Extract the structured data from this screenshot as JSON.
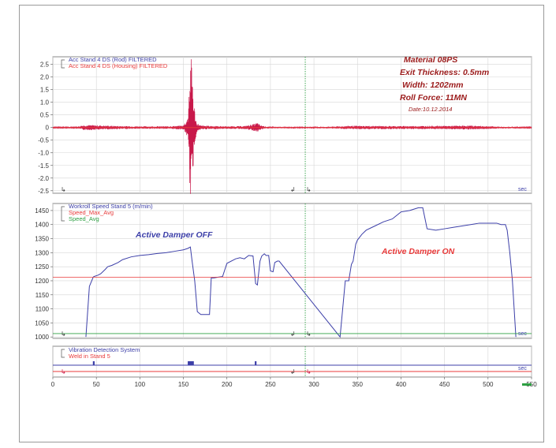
{
  "colors": {
    "blue": "#3c3fa8",
    "red": "#e83a3a",
    "green": "#2ea043",
    "grid": "#d6d6d6",
    "crimson": "#c8184a",
    "info": "#9b1b1b"
  },
  "info_box": {
    "material": "Material 08PS",
    "thickness": "Exit Thickness: 0.5mm",
    "width": "Width: 1202mm",
    "force": "Roll Force: 11MN",
    "date": "Date:10.12.2014"
  },
  "panel1": {
    "legend": [
      "Acc Stand 4 DS (Rod)  FILTERED",
      "Acc Stand 4 DS (Housing)  FILTERED"
    ],
    "sec_label": "sec"
  },
  "panel2": {
    "legend": [
      "Workroll Speed Stand 5 (m/min)",
      "Speed_Max_Avg",
      "Speed_Avg"
    ],
    "annotation_off": "Active Damper OFF",
    "annotation_on": "Active Damper ON",
    "sec_label": "sec"
  },
  "panel3": {
    "legend": [
      "Vibration Detection System",
      "Weld in Stand 5"
    ],
    "sec_label": "sec"
  },
  "chart_data": [
    {
      "type": "line",
      "series": [
        {
          "name": "Acc Stand 4 DS (Rod)  FILTERED",
          "color": "#3c3fa8"
        },
        {
          "name": "Acc Stand 4 DS (Housing)  FILTERED",
          "color": "#e83a3a"
        }
      ],
      "envelope": {
        "x": [
          0,
          28,
          30,
          35,
          45,
          60,
          80,
          100,
          130,
          150,
          155,
          158,
          160,
          162,
          165,
          170,
          200,
          220,
          232,
          235,
          238,
          245,
          260,
          290,
          300,
          310,
          330,
          340,
          400,
          450,
          480,
          520,
          540,
          550
        ],
        "y": [
          0.02,
          0.02,
          0.06,
          0.1,
          0.1,
          0.08,
          0.06,
          0.05,
          0.05,
          0.08,
          0.4,
          2.9,
          2.6,
          1.0,
          0.2,
          0.08,
          0.05,
          0.06,
          0.15,
          0.2,
          0.1,
          0.04,
          0.03,
          0.03,
          0.04,
          0.03,
          0.05,
          0.07,
          0.06,
          0.07,
          0.08,
          0.03,
          0.02,
          0.02
        ]
      },
      "x_range": [
        0,
        550
      ],
      "ylim": [
        -2.6,
        2.8
      ],
      "y_ticks": [
        2.5,
        2.0,
        1.5,
        1.0,
        0.5,
        0,
        -0.5,
        -1.0,
        -1.5,
        -2.0,
        -2.5
      ],
      "y_tick_labels": [
        "2.5",
        "2.0",
        "1.5",
        "1.0",
        "0.5",
        "0",
        "-0.5",
        "-1.0",
        "-1.5",
        "-2.0",
        "-2.5"
      ]
    },
    {
      "type": "line",
      "series": [
        {
          "name": "Workroll Speed Stand 5 (m/min)",
          "color": "#3c3fa8",
          "x": [
            38,
            42,
            46,
            47,
            52,
            55,
            60,
            63,
            68,
            75,
            80,
            90,
            100,
            110,
            120,
            130,
            140,
            150,
            155,
            158,
            160,
            163,
            166,
            170,
            180,
            182,
            185,
            190,
            195,
            200,
            210,
            215,
            220,
            225,
            230,
            233,
            235,
            238,
            240,
            243,
            245,
            248,
            250,
            253,
            255,
            258,
            260,
            330,
            336,
            340,
            343,
            345,
            348,
            350,
            355,
            360,
            370,
            380,
            390,
            400,
            410,
            415,
            420,
            425,
            430,
            440,
            450,
            460,
            470,
            480,
            490,
            500,
            510,
            515,
            520,
            522,
            525,
            528,
            530,
            532
          ],
          "y": [
            1000,
            1180,
            1210,
            1215,
            1220,
            1225,
            1240,
            1250,
            1255,
            1265,
            1275,
            1285,
            1290,
            1293,
            1297,
            1300,
            1305,
            1310,
            1315,
            1320,
            1270,
            1200,
            1090,
            1080,
            1080,
            1210,
            1210,
            1213,
            1215,
            1262,
            1278,
            1282,
            1278,
            1290,
            1288,
            1190,
            1185,
            1270,
            1288,
            1296,
            1290,
            1290,
            1235,
            1232,
            1265,
            1270,
            1270,
            1000,
            1200,
            1200,
            1258,
            1270,
            1330,
            1345,
            1365,
            1380,
            1395,
            1410,
            1420,
            1445,
            1450,
            1455,
            1460,
            1460,
            1385,
            1380,
            1385,
            1390,
            1395,
            1400,
            1405,
            1405,
            1405,
            1400,
            1400,
            1380,
            1300,
            1200,
            1100,
            1000
          ]
        },
        {
          "name": "Speed_Max_Avg",
          "color": "#e83a3a",
          "x": [
            0,
            550
          ],
          "y": [
            1213,
            1213
          ]
        },
        {
          "name": "Speed_Avg",
          "color": "#2ea043",
          "x": [
            0,
            550
          ],
          "y": [
            1012,
            1012
          ]
        }
      ],
      "x_range": [
        0,
        550
      ],
      "ylim": [
        995,
        1475
      ],
      "y_ticks": [
        1450,
        1400,
        1350,
        1300,
        1250,
        1200,
        1150,
        1100,
        1050,
        1000
      ],
      "y_tick_labels": [
        "1450",
        "1400",
        "1350",
        "1300",
        "1250",
        "1200",
        "1150",
        "1100",
        "1050",
        "1000"
      ]
    },
    {
      "type": "line",
      "series": [
        {
          "name": "Vibration Detection System",
          "color": "#3c3fa8",
          "pulses": [
            [
              46,
              48
            ],
            [
              155,
              162
            ],
            [
              232,
              234
            ]
          ]
        },
        {
          "name": "Weld in Stand 5",
          "color": "#e83a3a"
        }
      ],
      "x_range": [
        0,
        550
      ],
      "x_ticks": [
        0,
        50,
        100,
        150,
        200,
        250,
        300,
        350,
        400,
        450,
        500,
        550
      ],
      "x_tick_labels": [
        "0",
        "50",
        "100",
        "150",
        "200",
        "250",
        "300",
        "350",
        "400",
        "450",
        "500",
        "550"
      ],
      "marker_x": 290
    }
  ]
}
